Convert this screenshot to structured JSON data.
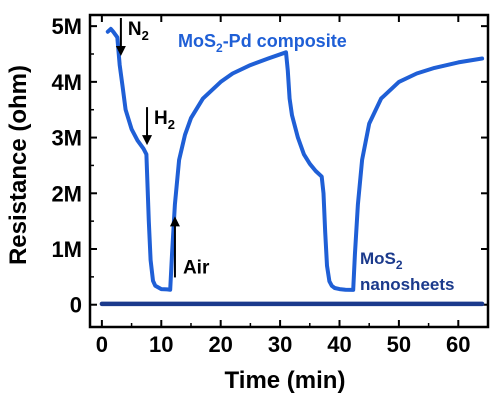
{
  "chart_data": {
    "type": "line",
    "title": "",
    "xlabel": "Time (min)",
    "ylabel": "Resistance (ohm)",
    "xlim": [
      -2,
      65
    ],
    "ylim": [
      -400000,
      5200000
    ],
    "xticks": [
      0,
      10,
      20,
      30,
      40,
      50,
      60
    ],
    "xtick_labels": [
      "0",
      "10",
      "20",
      "30",
      "40",
      "50",
      "60"
    ],
    "yticks": [
      0,
      1000000,
      2000000,
      3000000,
      4000000,
      5000000
    ],
    "ytick_labels": [
      "0",
      "1M",
      "2M",
      "3M",
      "4M",
      "5M"
    ],
    "grid": false,
    "series": [
      {
        "name": "MoS2-Pd composite",
        "color": "#1f5fd6",
        "x": [
          1,
          1.5,
          1.9,
          2.6,
          3,
          3.5,
          4,
          5,
          6,
          7,
          7.5,
          7.6,
          7.9,
          8.2,
          8.6,
          9,
          10,
          11,
          11.5,
          11.8,
          12.3,
          13,
          14,
          15,
          17,
          20,
          22,
          25,
          28,
          31,
          31.3,
          31.6,
          32,
          33,
          34,
          35,
          36,
          37,
          37.3,
          37.6,
          37.9,
          38.3,
          38.7,
          39.2,
          40,
          41,
          42.3,
          42.6,
          43.1,
          43.8,
          45,
          47,
          50,
          53,
          56,
          60,
          64
        ],
        "y": [
          4900000,
          4950000,
          4900000,
          4800000,
          4300000,
          3900000,
          3500000,
          3150000,
          2950000,
          2800000,
          2700000,
          2400000,
          1500000,
          800000,
          430000,
          340000,
          280000,
          275000,
          270000,
          900000,
          1800000,
          2600000,
          3050000,
          3350000,
          3700000,
          4000000,
          4150000,
          4300000,
          4420000,
          4530000,
          4200000,
          3700000,
          3400000,
          3000000,
          2700000,
          2530000,
          2400000,
          2300000,
          2000000,
          1300000,
          700000,
          420000,
          340000,
          300000,
          280000,
          270000,
          265000,
          900000,
          1800000,
          2600000,
          3250000,
          3700000,
          4000000,
          4150000,
          4250000,
          4350000,
          4420000
        ]
      },
      {
        "name": "MoS2 nanosheets",
        "color": "#1b3a8c",
        "x": [
          0,
          64
        ],
        "y": [
          15000,
          15000
        ]
      }
    ],
    "labels": {
      "composite": {
        "prefix": "MoS",
        "sub": "2",
        "suffix": "-Pd composite"
      },
      "sheet": {
        "line1_prefix": "MoS",
        "line1_sub": "2",
        "line2": "nanosheets"
      }
    },
    "annotations": [
      {
        "prefix": "N",
        "sub": "2",
        "x": 3.2,
        "y_tip": 4500000
      },
      {
        "prefix": "H",
        "sub": "2",
        "x": 7.6,
        "y_tip": 2900000
      },
      {
        "prefix": "Air",
        "sub": "",
        "x": 12.3,
        "y_tip": 400000
      }
    ]
  }
}
